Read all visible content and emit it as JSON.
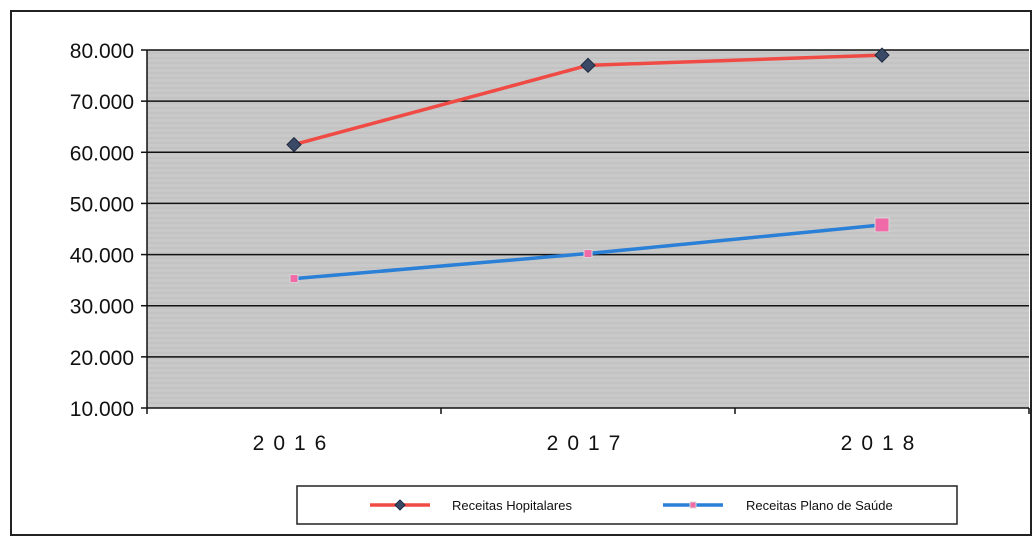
{
  "chart_data": {
    "type": "line",
    "categories": [
      "2016",
      "2017",
      "2018"
    ],
    "series": [
      {
        "name": "Receitas Hopitalares",
        "values": [
          61500,
          77000,
          79000
        ],
        "color": "#f04a44",
        "marker": "diamond",
        "marker_color": "#3a4a66"
      },
      {
        "name": "Receitas Plano de Saúde",
        "values": [
          35300,
          40200,
          45800
        ],
        "color": "#2a7fd6",
        "marker": "square",
        "marker_color": "#f06aa8"
      }
    ],
    "ylim": [
      10000,
      80000
    ],
    "yticks": [
      "80.000",
      "70.000",
      "60.000",
      "50.000",
      "40.000",
      "30.000",
      "20.000",
      "10.000"
    ],
    "ytick_values": [
      80000,
      70000,
      60000,
      50000,
      40000,
      30000,
      20000,
      10000
    ],
    "grid": true,
    "legend": "bottom",
    "plot_background": "#c9c9c9"
  }
}
